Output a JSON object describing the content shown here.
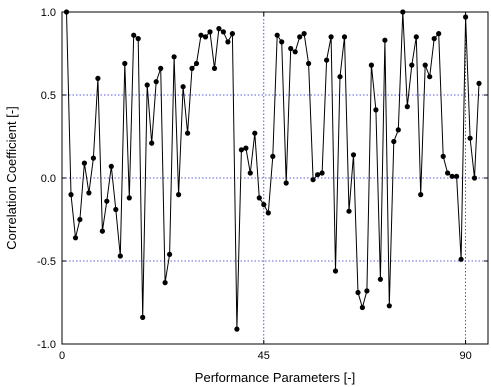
{
  "chart_data": {
    "type": "line",
    "xlabel": "Performance Parameters [-]",
    "ylabel": "Correlation Coefficient [-]",
    "xlim": [
      0,
      95
    ],
    "ylim": [
      -1.0,
      1.0
    ],
    "xticks": [
      {
        "value": 0,
        "label": "0"
      },
      {
        "value": 45,
        "label": "45"
      },
      {
        "value": 90,
        "label": "90"
      }
    ],
    "yticks": [
      {
        "value": 1.0,
        "label": "1.0"
      },
      {
        "value": 0.5,
        "label": "0.5"
      },
      {
        "value": 0.0,
        "label": "0.0"
      },
      {
        "value": -0.5,
        "label": "-0.5"
      },
      {
        "value": -1.0,
        "label": "-1.0"
      }
    ],
    "grid": {
      "horizontal": [
        0.5,
        0.0,
        -0.5
      ],
      "vertical": [
        45,
        90
      ],
      "style": "dotted",
      "color": "#2b2bd6"
    },
    "series": [
      {
        "color": "#000000",
        "marker": "circle",
        "points": [
          [
            1,
            1.0
          ],
          [
            2,
            -0.1
          ],
          [
            3,
            -0.36
          ],
          [
            4,
            -0.25
          ],
          [
            5,
            0.09
          ],
          [
            6,
            -0.09
          ],
          [
            7,
            0.12
          ],
          [
            8,
            0.6
          ],
          [
            9,
            -0.32
          ],
          [
            10,
            -0.14
          ],
          [
            11,
            0.07
          ],
          [
            12,
            -0.19
          ],
          [
            13,
            -0.47
          ],
          [
            14,
            0.69
          ],
          [
            15,
            -0.12
          ],
          [
            16,
            0.86
          ],
          [
            17,
            0.84
          ],
          [
            18,
            -0.84
          ],
          [
            19,
            0.56
          ],
          [
            20,
            0.21
          ],
          [
            21,
            0.58
          ],
          [
            22,
            0.66
          ],
          [
            23,
            -0.63
          ],
          [
            24,
            -0.46
          ],
          [
            25,
            0.73
          ],
          [
            26,
            -0.1
          ],
          [
            27,
            0.55
          ],
          [
            28,
            0.27
          ],
          [
            29,
            0.66
          ],
          [
            30,
            0.69
          ],
          [
            31,
            0.86
          ],
          [
            32,
            0.85
          ],
          [
            33,
            0.88
          ],
          [
            34,
            0.66
          ],
          [
            35,
            0.9
          ],
          [
            36,
            0.88
          ],
          [
            37,
            0.82
          ],
          [
            38,
            0.87
          ],
          [
            39,
            -0.91
          ],
          [
            40,
            0.17
          ],
          [
            41,
            0.18
          ],
          [
            42,
            0.03
          ],
          [
            43,
            0.27
          ],
          [
            44,
            -0.12
          ],
          [
            45,
            -0.16
          ],
          [
            46,
            -0.21
          ],
          [
            47,
            0.13
          ],
          [
            48,
            0.86
          ],
          [
            49,
            0.82
          ],
          [
            50,
            -0.03
          ],
          [
            51,
            0.78
          ],
          [
            52,
            0.76
          ],
          [
            53,
            0.85
          ],
          [
            54,
            0.87
          ],
          [
            55,
            0.69
          ],
          [
            56,
            -0.01
          ],
          [
            57,
            0.02
          ],
          [
            58,
            0.03
          ],
          [
            59,
            0.71
          ],
          [
            60,
            0.85
          ],
          [
            61,
            -0.56
          ],
          [
            62,
            0.61
          ],
          [
            63,
            0.85
          ],
          [
            64,
            -0.2
          ],
          [
            65,
            0.14
          ],
          [
            66,
            -0.69
          ],
          [
            67,
            -0.78
          ],
          [
            68,
            -0.68
          ],
          [
            69,
            0.68
          ],
          [
            70,
            0.41
          ],
          [
            71,
            -0.61
          ],
          [
            72,
            0.83
          ],
          [
            73,
            -0.77
          ],
          [
            74,
            0.22
          ],
          [
            75,
            0.29
          ],
          [
            76,
            1.0
          ],
          [
            77,
            0.43
          ],
          [
            78,
            0.68
          ],
          [
            79,
            0.85
          ],
          [
            80,
            -0.1
          ],
          [
            81,
            0.68
          ],
          [
            82,
            0.61
          ],
          [
            83,
            0.84
          ],
          [
            84,
            0.87
          ],
          [
            85,
            0.13
          ],
          [
            86,
            0.03
          ],
          [
            87,
            0.01
          ],
          [
            88,
            0.01
          ],
          [
            89,
            -0.49
          ],
          [
            90,
            0.97
          ],
          [
            91,
            0.24
          ],
          [
            92,
            0.0
          ],
          [
            93,
            0.57
          ]
        ]
      }
    ]
  }
}
